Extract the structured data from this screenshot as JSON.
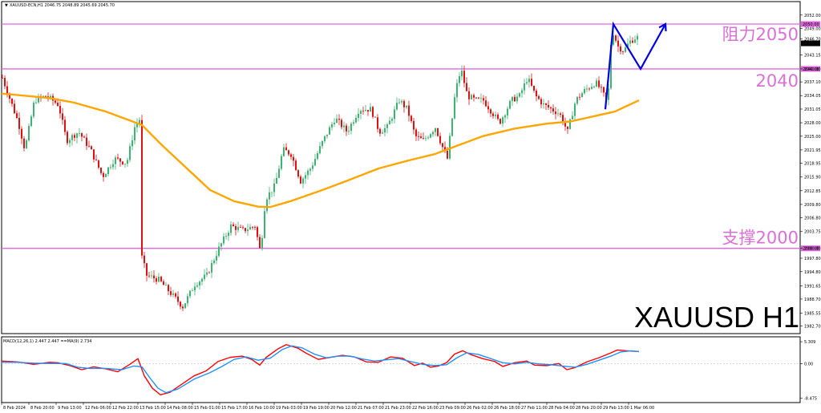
{
  "chart_data": [
    {
      "type": "candlestick",
      "title": "XAUUSD H1",
      "header": "XAUUSD-ECN,H1  2046.75 2048.89 2045.69 2045.70",
      "y_axis": {
        "range": [
          1981.0,
          2055.0
        ],
        "tick_labels": [
          "2052.00",
          "2049.00",
          "2046.70",
          "2043.15",
          "2040.00",
          "2037.10",
          "2034.05",
          "2031.05",
          "2028.00",
          "2025.00",
          "2021.95",
          "2018.95",
          "2015.90",
          "2012.85",
          "2009.80",
          "2006.80",
          "2003.75",
          "2000.00",
          "1997.80",
          "1994.80",
          "1991.65",
          "1988.70",
          "1985.55",
          "1982.70"
        ]
      },
      "x_axis": {
        "tick_labels": [
          "8 Feb 2024",
          "8 Feb 20:00",
          "9 Feb 13:00",
          "12 Feb 06:00",
          "12 Feb 22:00",
          "13 Feb 15:00",
          "14 Feb 08:00",
          "15 Feb 01:00",
          "15 Feb 17:00",
          "16 Feb 10:00",
          "19 Feb 03:00",
          "19 Feb 19:00",
          "20 Feb 12:00",
          "21 Feb 07:00",
          "21 Feb 23:00",
          "22 Feb 16:00",
          "23 Feb 09:00",
          "26 Feb 02:00",
          "26 Feb 18:00",
          "27 Feb 11:00",
          "28 Feb 04:00",
          "28 Feb 20:00",
          "29 Feb 13:00",
          "1 Mar 06:00"
        ]
      },
      "levels": [
        {
          "value": 2050.0,
          "label": "阻力2050",
          "price_tag": "2050.00"
        },
        {
          "value": 2040.0,
          "label": "2040",
          "price_tag": "2040.00"
        },
        {
          "value": 2000.0,
          "label": "支撑2000",
          "price_tag": "2000.00"
        }
      ],
      "current_price": "2045.70",
      "ma_line": [
        [
          0,
          2034.5
        ],
        [
          30,
          2034
        ],
        [
          60,
          2033.5
        ],
        [
          90,
          2032.5
        ],
        [
          130,
          2030.5
        ],
        [
          160,
          2028.5
        ],
        [
          175,
          2027.5
        ],
        [
          200,
          2023
        ],
        [
          230,
          2018
        ],
        [
          260,
          2013
        ],
        [
          290,
          2010.5
        ],
        [
          320,
          2009.3
        ],
        [
          335,
          2009.2
        ],
        [
          360,
          2010.5
        ],
        [
          400,
          2013
        ],
        [
          430,
          2015
        ],
        [
          470,
          2017.8
        ],
        [
          510,
          2019.7
        ],
        [
          540,
          2021
        ],
        [
          570,
          2023
        ],
        [
          600,
          2025
        ],
        [
          640,
          2026.7
        ],
        [
          680,
          2027.8
        ],
        [
          710,
          2028.3
        ],
        [
          740,
          2029.5
        ],
        [
          765,
          2030.5
        ],
        [
          795,
          2033
        ]
      ],
      "close_path": [
        [
          0,
          2038
        ],
        [
          10,
          2033
        ],
        [
          20,
          2028
        ],
        [
          28,
          2022
        ],
        [
          40,
          2033
        ],
        [
          55,
          2034
        ],
        [
          70,
          2032
        ],
        [
          80,
          2024
        ],
        [
          95,
          2026
        ],
        [
          110,
          2022
        ],
        [
          125,
          2016
        ],
        [
          140,
          2020
        ],
        [
          155,
          2019
        ],
        [
          165,
          2027
        ],
        [
          172,
          2029
        ],
        [
          174,
          1998
        ],
        [
          180,
          1994
        ],
        [
          195,
          1993
        ],
        [
          210,
          1990
        ],
        [
          225,
          1987
        ],
        [
          240,
          1992
        ],
        [
          255,
          1994
        ],
        [
          270,
          2000
        ],
        [
          285,
          2005
        ],
        [
          300,
          2004
        ],
        [
          315,
          2005
        ],
        [
          322,
          1999
        ],
        [
          328,
          2011
        ],
        [
          340,
          2014
        ],
        [
          350,
          2022
        ],
        [
          360,
          2021
        ],
        [
          372,
          2015
        ],
        [
          385,
          2018
        ],
        [
          400,
          2024
        ],
        [
          415,
          2029
        ],
        [
          430,
          2026
        ],
        [
          445,
          2031
        ],
        [
          460,
          2031
        ],
        [
          470,
          2026
        ],
        [
          480,
          2027
        ],
        [
          495,
          2033
        ],
        [
          505,
          2031
        ],
        [
          515,
          2025
        ],
        [
          525,
          2024
        ],
        [
          540,
          2027
        ],
        [
          548,
          2023
        ],
        [
          555,
          2020
        ],
        [
          565,
          2035
        ],
        [
          572,
          2040
        ],
        [
          580,
          2034
        ],
        [
          590,
          2033
        ],
        [
          600,
          2033
        ],
        [
          612,
          2030
        ],
        [
          620,
          2028
        ],
        [
          635,
          2033
        ],
        [
          645,
          2034
        ],
        [
          655,
          2038
        ],
        [
          665,
          2034
        ],
        [
          675,
          2032
        ],
        [
          685,
          2031
        ],
        [
          695,
          2030
        ],
        [
          705,
          2026
        ],
        [
          715,
          2033
        ],
        [
          725,
          2035
        ],
        [
          740,
          2037
        ],
        [
          748,
          2035
        ],
        [
          755,
          2032
        ],
        [
          760,
          2049
        ],
        [
          768,
          2045
        ],
        [
          775,
          2044
        ],
        [
          782,
          2046
        ],
        [
          790,
          2047
        ]
      ],
      "forecast_arrow": [
        [
          753,
          2031
        ],
        [
          763,
          2050
        ],
        [
          797,
          2040
        ],
        [
          828,
          2050
        ]
      ]
    },
    {
      "type": "line",
      "title": "MACD",
      "header": "MACD(12,26,1) 2.447 2.447 ==MA(9) 2.734",
      "y_axis": {
        "range": [
          -9.5,
          6.5
        ],
        "tick_labels": [
          "5.309",
          "0.00",
          "-8.475"
        ]
      },
      "series": [
        {
          "name": "MACD",
          "color": "#ff0000",
          "points": [
            [
              0,
              0.6
            ],
            [
              20,
              0.4
            ],
            [
              40,
              -0.2
            ],
            [
              60,
              0.3
            ],
            [
              70,
              0.2
            ],
            [
              85,
              -0.5
            ],
            [
              100,
              -1.5
            ],
            [
              115,
              -0.8
            ],
            [
              130,
              -1.3
            ],
            [
              145,
              -2
            ],
            [
              160,
              -0.2
            ],
            [
              170,
              1.2
            ],
            [
              178,
              -3
            ],
            [
              188,
              -6
            ],
            [
              198,
              -7.6
            ],
            [
              210,
              -7
            ],
            [
              225,
              -5
            ],
            [
              240,
              -3
            ],
            [
              255,
              -1.8
            ],
            [
              270,
              0.5
            ],
            [
              285,
              1.5
            ],
            [
              300,
              1.8
            ],
            [
              312,
              1
            ],
            [
              322,
              -0.4
            ],
            [
              330,
              1.5
            ],
            [
              345,
              3.6
            ],
            [
              355,
              4.6
            ],
            [
              370,
              3.7
            ],
            [
              380,
              2.5
            ],
            [
              395,
              1
            ],
            [
              410,
              1.5
            ],
            [
              425,
              2
            ],
            [
              440,
              1.6
            ],
            [
              455,
              0.4
            ],
            [
              470,
              0.3
            ],
            [
              485,
              1.6
            ],
            [
              500,
              1.3
            ],
            [
              515,
              -0.5
            ],
            [
              525,
              0.1
            ],
            [
              535,
              -0.9
            ],
            [
              545,
              -0.6
            ],
            [
              555,
              0.2
            ],
            [
              565,
              2.3
            ],
            [
              575,
              3.1
            ],
            [
              585,
              2.2
            ],
            [
              600,
              1.2
            ],
            [
              615,
              0.5
            ],
            [
              625,
              -0.7
            ],
            [
              640,
              0.2
            ],
            [
              655,
              0.6
            ],
            [
              665,
              -0.4
            ],
            [
              680,
              -0.5
            ],
            [
              695,
              0
            ],
            [
              705,
              -1.5
            ],
            [
              715,
              -1
            ],
            [
              730,
              0.4
            ],
            [
              745,
              1.4
            ],
            [
              760,
              2.6
            ],
            [
              768,
              3.3
            ],
            [
              780,
              3.1
            ],
            [
              795,
              2.9
            ]
          ]
        },
        {
          "name": "MA(9)",
          "color": "#1e90ff",
          "points": [
            [
              0,
              0.3
            ],
            [
              20,
              0.3
            ],
            [
              40,
              0.1
            ],
            [
              60,
              0
            ],
            [
              80,
              0
            ],
            [
              95,
              -0.9
            ],
            [
              110,
              -1.2
            ],
            [
              130,
              -1.2
            ],
            [
              150,
              -1.5
            ],
            [
              165,
              -0.6
            ],
            [
              175,
              -0.8
            ],
            [
              185,
              -3.5
            ],
            [
              195,
              -6
            ],
            [
              205,
              -7.1
            ],
            [
              220,
              -6.2
            ],
            [
              240,
              -3.8
            ],
            [
              260,
              -2.2
            ],
            [
              275,
              -0.7
            ],
            [
              290,
              1
            ],
            [
              305,
              1.6
            ],
            [
              320,
              0.8
            ],
            [
              335,
              1.3
            ],
            [
              350,
              3.4
            ],
            [
              362,
              4.3
            ],
            [
              375,
              3.8
            ],
            [
              390,
              2.3
            ],
            [
              405,
              1.4
            ],
            [
              420,
              1.8
            ],
            [
              435,
              1.8
            ],
            [
              450,
              1.1
            ],
            [
              465,
              0.6
            ],
            [
              480,
              0.9
            ],
            [
              495,
              1.2
            ],
            [
              510,
              0.5
            ],
            [
              525,
              -0.2
            ],
            [
              540,
              -0.5
            ],
            [
              555,
              -0.3
            ],
            [
              568,
              1.4
            ],
            [
              580,
              2.6
            ],
            [
              595,
              2.2
            ],
            [
              610,
              1.2
            ],
            [
              625,
              0.2
            ],
            [
              640,
              -0.1
            ],
            [
              655,
              0.3
            ],
            [
              670,
              -0.1
            ],
            [
              685,
              -0.3
            ],
            [
              700,
              -0.6
            ],
            [
              715,
              -0.9
            ],
            [
              730,
              -0.2
            ],
            [
              745,
              0.8
            ],
            [
              760,
              1.8
            ],
            [
              772,
              2.8
            ],
            [
              785,
              3.1
            ],
            [
              795,
              2.9
            ]
          ]
        }
      ]
    }
  ],
  "colors": {
    "level_line": "#e066e0",
    "level_text": "#da70d6",
    "bull": "#3cb371",
    "bear": "#e01010",
    "ma": "#ffa500",
    "arrow": "#0000e0"
  }
}
